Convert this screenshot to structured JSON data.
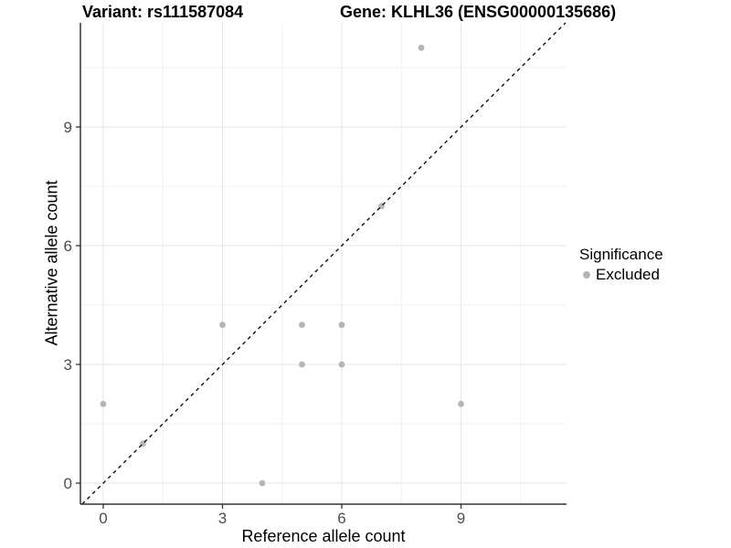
{
  "chart_data": {
    "type": "scatter",
    "title_left": "Variant: rs111587084",
    "title_right": "Gene: KLHL36 (ENSG00000135686)",
    "xlabel": "Reference allele count",
    "ylabel": "Alternative allele count",
    "x_ticks": [
      0,
      3,
      6,
      9
    ],
    "x_tick_labels": [
      "0",
      "3",
      "6",
      "9"
    ],
    "y_ticks": [
      0,
      3,
      6,
      9
    ],
    "y_tick_labels": [
      "0",
      "3",
      "6",
      "9"
    ],
    "x_minor_ticks": [
      1.5,
      4.5,
      7.5,
      10.5
    ],
    "y_minor_ticks": [
      1.5,
      4.5,
      7.5,
      10.5
    ],
    "xlim": [
      -0.57,
      11.66
    ],
    "ylim": [
      -0.53,
      11.63
    ],
    "grid": true,
    "points": [
      [
        0,
        2
      ],
      [
        1,
        1
      ],
      [
        3,
        4
      ],
      [
        4,
        0
      ],
      [
        5,
        3
      ],
      [
        5,
        4
      ],
      [
        6,
        3
      ],
      [
        6,
        4
      ],
      [
        7,
        7
      ],
      [
        8,
        11
      ],
      [
        9,
        2
      ]
    ],
    "identity_line": {
      "slope": 1,
      "intercept": 0,
      "style": "dashed"
    },
    "legend": {
      "title": "Significance",
      "position": "right",
      "items": [
        {
          "label": "Excluded",
          "color": "#b5b5b5",
          "marker": "circle"
        }
      ]
    },
    "colors": {
      "point": "#b5b5b5",
      "grid_major": "#e6e6e6",
      "grid_minor": "#f2f2f2",
      "axis_line": "#333333",
      "dashed_line": "#000000",
      "tick_label": "#4d4d4d",
      "background": "#ffffff"
    }
  }
}
